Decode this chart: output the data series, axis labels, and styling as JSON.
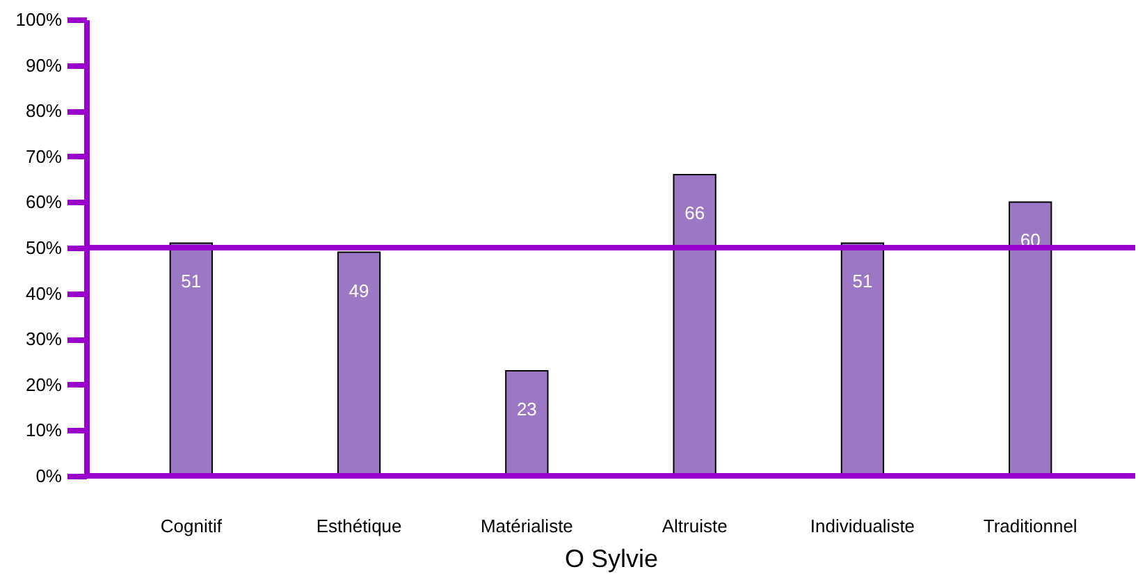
{
  "chart_data": {
    "type": "bar",
    "xlabel": "O Sylvie",
    "categories": [
      "Cognitif",
      "Esthétique",
      "Matérialiste",
      "Altruiste",
      "Individualiste",
      "Traditionnel"
    ],
    "values": [
      51,
      49,
      23,
      66,
      51,
      60
    ],
    "color": "#9b77c4",
    "data_labels": true,
    "ylim": [
      0,
      100
    ],
    "yticks": [
      {
        "value": 0,
        "label": "0%"
      },
      {
        "value": 10,
        "label": "10%"
      },
      {
        "value": 20,
        "label": "20%"
      },
      {
        "value": 30,
        "label": "30%"
      },
      {
        "value": 40,
        "label": "40%"
      },
      {
        "value": 50,
        "label": "50%"
      },
      {
        "value": 60,
        "label": "60%"
      },
      {
        "value": 70,
        "label": "70%"
      },
      {
        "value": 80,
        "label": "80%"
      },
      {
        "value": 90,
        "label": "90%"
      },
      {
        "value": 100,
        "label": "100%"
      }
    ],
    "ref_lines": [
      {
        "axis": "y",
        "value": 50,
        "color": "#9900cc"
      }
    ],
    "grid": false
  }
}
